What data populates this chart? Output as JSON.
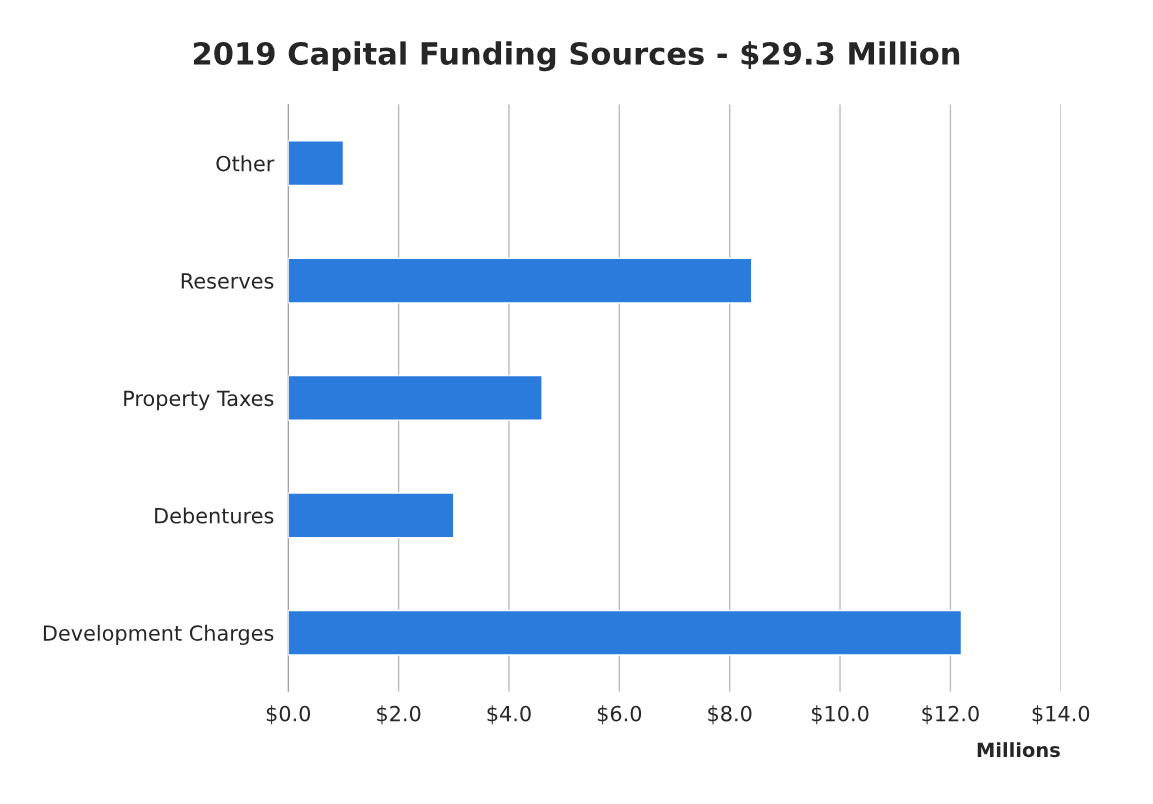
{
  "chart_data": {
    "type": "bar",
    "orientation": "horizontal",
    "title": "2019 Capital Funding Sources - $29.3 Million",
    "categories": [
      "Other",
      "Reserves",
      "Property Taxes",
      "Debentures",
      "Development Charges"
    ],
    "values": [
      1.0,
      8.4,
      4.6,
      3.0,
      12.2
    ],
    "color": "#2b7bdc",
    "xlabel": "Millions",
    "xlim": [
      0,
      14
    ],
    "xticks": [
      {
        "value": 0,
        "label": "$0.0"
      },
      {
        "value": 2,
        "label": "$2.0"
      },
      {
        "value": 4,
        "label": "$4.0"
      },
      {
        "value": 6,
        "label": "$6.0"
      },
      {
        "value": 8,
        "label": "$8.0"
      },
      {
        "value": 10,
        "label": "$10.0"
      },
      {
        "value": 12,
        "label": "$12.0"
      },
      {
        "value": 14,
        "label": "$14.0"
      }
    ],
    "grid": "x"
  }
}
